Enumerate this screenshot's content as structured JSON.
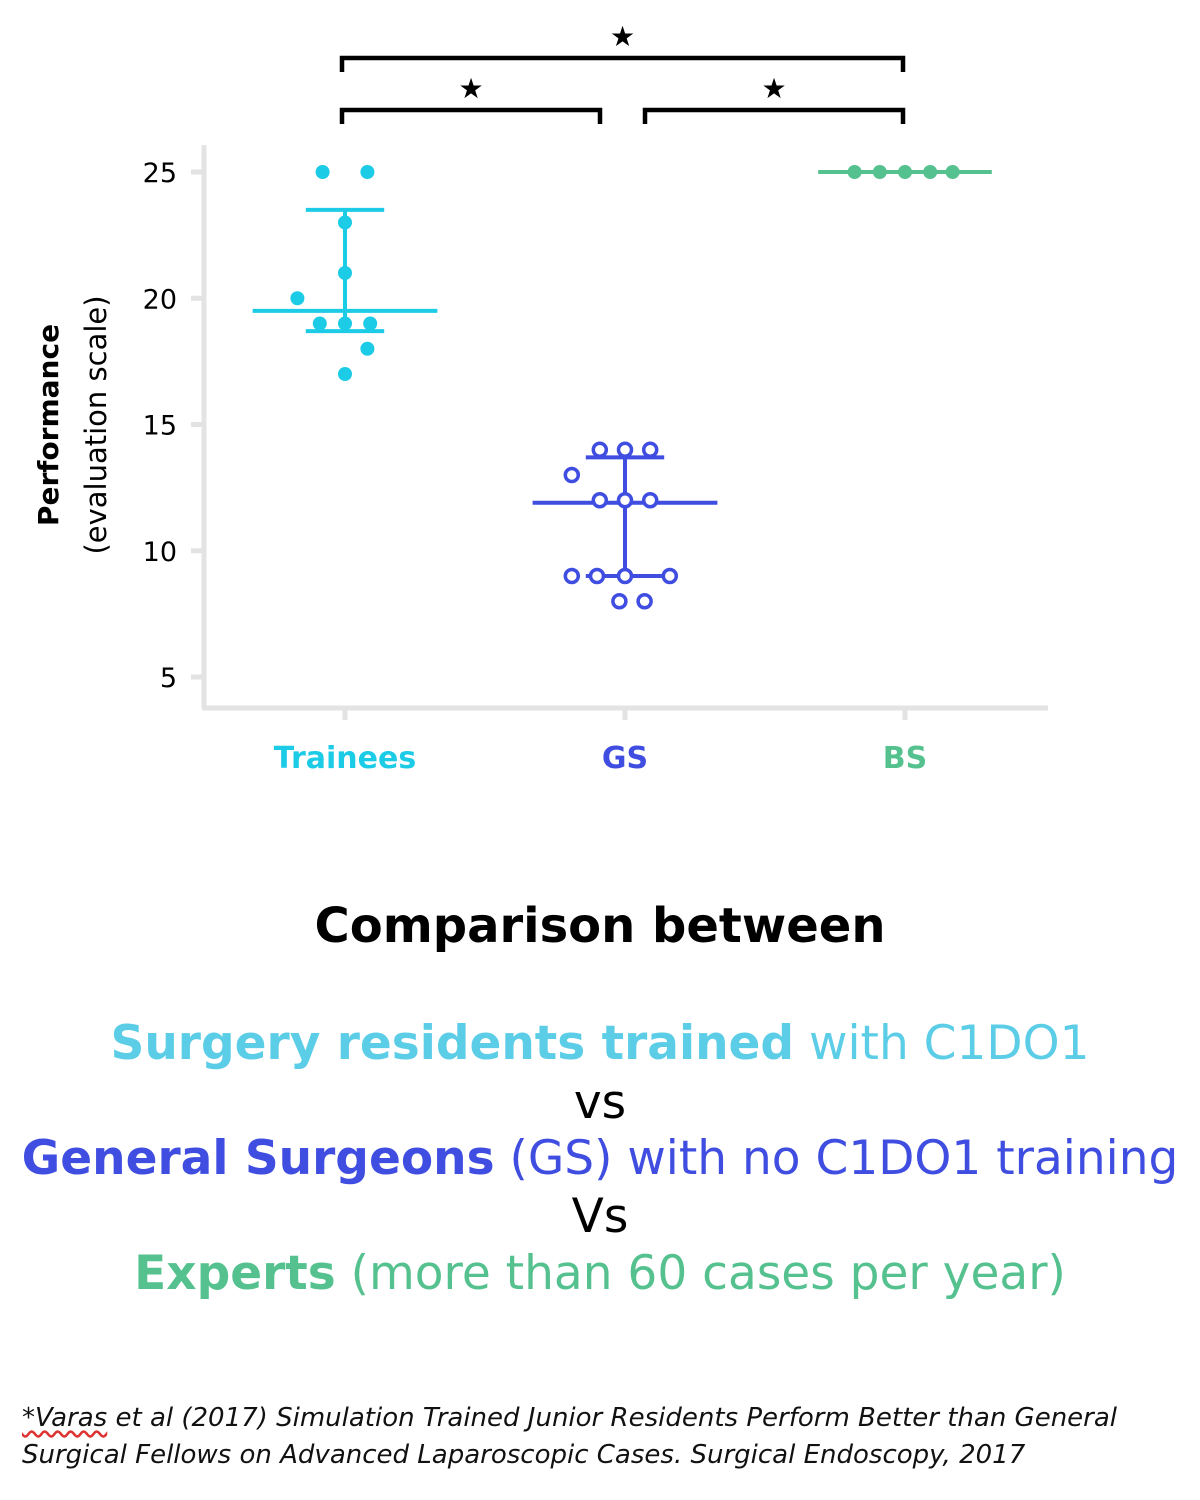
{
  "chart_data": {
    "type": "scatter",
    "ylabel_bold": "Performance",
    "ylabel_sub": "(evaluation scale)",
    "ylim": [
      3.8,
      26.5
    ],
    "yticks": [
      5,
      10,
      15,
      20,
      25
    ],
    "categories": [
      "Trainees",
      "GS",
      "BS"
    ],
    "grid": false,
    "series": [
      {
        "name": "Trainees",
        "color": "#1ccbe6",
        "marker": "filled",
        "points": [
          {
            "x": -0.08,
            "y": 25
          },
          {
            "x": 0.08,
            "y": 25
          },
          {
            "x": 0,
            "y": 23
          },
          {
            "x": 0,
            "y": 21
          },
          {
            "x": -0.17,
            "y": 20
          },
          {
            "x": -0.09,
            "y": 19
          },
          {
            "x": 0,
            "y": 19
          },
          {
            "x": 0.09,
            "y": 19
          },
          {
            "x": 0.08,
            "y": 18
          },
          {
            "x": 0,
            "y": 17
          }
        ],
        "median": 19.5,
        "q1": 18.7,
        "q3": 23.5,
        "median_halfwidth": 0.33,
        "q_halfwidth": 0.14
      },
      {
        "name": "GS",
        "color": "#3f4de0",
        "marker": "open",
        "points": [
          {
            "x": -0.09,
            "y": 14
          },
          {
            "x": 0,
            "y": 14
          },
          {
            "x": 0.09,
            "y": 14
          },
          {
            "x": -0.19,
            "y": 13
          },
          {
            "x": -0.09,
            "y": 12
          },
          {
            "x": 0,
            "y": 12
          },
          {
            "x": 0.09,
            "y": 12
          },
          {
            "x": -0.19,
            "y": 9
          },
          {
            "x": -0.1,
            "y": 9
          },
          {
            "x": 0,
            "y": 9
          },
          {
            "x": 0.16,
            "y": 9
          },
          {
            "x": -0.02,
            "y": 8
          },
          {
            "x": 0.07,
            "y": 8
          }
        ],
        "median": 11.9,
        "q1": 9,
        "q3": 13.7,
        "median_halfwidth": 0.33,
        "q_halfwidth": 0.14
      },
      {
        "name": "BS",
        "color": "#55c18f",
        "marker": "filled",
        "points": [
          {
            "x": -0.18,
            "y": 25
          },
          {
            "x": -0.09,
            "y": 25
          },
          {
            "x": 0,
            "y": 25
          },
          {
            "x": 0.09,
            "y": 25
          },
          {
            "x": 0.17,
            "y": 25
          }
        ],
        "median": 25,
        "q1": 25,
        "q3": 25,
        "median_halfwidth": 0.31,
        "q_halfwidth": 0.31
      }
    ],
    "significance": [
      {
        "from": 0,
        "to": 1,
        "level": 1,
        "label": "★"
      },
      {
        "from": 1,
        "to": 2,
        "level": 1,
        "label": "★"
      },
      {
        "from": 0,
        "to": 2,
        "level": 2,
        "label": "★"
      }
    ]
  },
  "caption": {
    "heading": "Comparison between",
    "line1_bold": "Surgery residents trained",
    "line1_rest": " with C1DO1",
    "vs1": "vs",
    "line2_bold": "General Surgeons",
    "line2_rest": " (GS) with no C1DO1 training",
    "vs2": "Vs",
    "line3_bold": "Experts",
    "line3_rest": " (more than 60 cases per year)",
    "color_trainees": "#5ccde6",
    "color_gs": "#3f4de0",
    "color_experts": "#55c18f"
  },
  "citation": {
    "first_word": "*Varas",
    "rest": " et al (2017) Simulation Trained Junior Residents Perform Better than General Surgical Fellows on Advanced Laparoscopic Cases. Surgical Endoscopy, 2017"
  }
}
